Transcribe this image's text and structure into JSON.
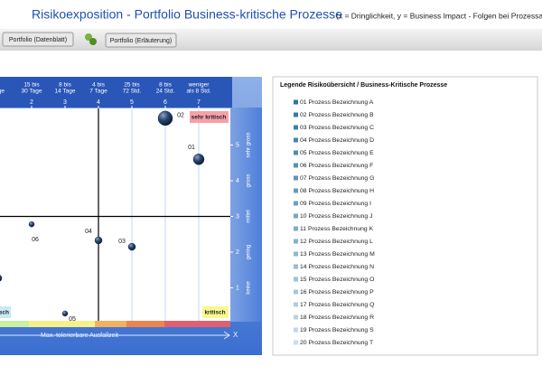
{
  "header": {
    "title": "Risikoexposition - Portfolio Business-kritische Prozesse",
    "subtitle": "(x = Dringlichkeit,   y = Business Impact  -  Folgen bei Prozessausfall"
  },
  "toolbar": {
    "buttons": [
      "Portfolio (Datenblatt)",
      "Portfolio (Erläuterung)"
    ]
  },
  "chart_data": {
    "type": "bubble",
    "x": [
      7,
      6,
      5,
      4,
      3,
      2,
      1
    ],
    "y": [
      4.6,
      5.75,
      2.15,
      2.33,
      0.28,
      2.78,
      1.27
    ],
    "sizes": [
      6,
      8,
      4,
      4,
      3,
      3,
      4
    ],
    "point_labels": [
      "01",
      "02",
      "03",
      "04",
      "05",
      "06",
      null
    ],
    "color": "#1f3558",
    "xlim": [
      1,
      8
    ],
    "ylim": [
      0,
      6
    ],
    "xticks": [
      2,
      3,
      4,
      5,
      6,
      7
    ],
    "x_tick_periods": [
      [
        "15 bis",
        "30 Tage"
      ],
      [
        "8 bis",
        "14 Tage"
      ],
      [
        "4 bis",
        "7 Tage"
      ],
      [
        "25 bis",
        "72 Std."
      ],
      [
        "8 bis",
        "24 Std."
      ],
      [
        "weniger",
        "als 8 Std."
      ]
    ],
    "first_column_period": "Tage",
    "yticks": [
      1,
      2,
      3,
      4,
      5
    ],
    "y_tick_words": [
      "keine",
      "gering",
      "mittel",
      "gross",
      "sehr gross"
    ],
    "quadrant_x": 4,
    "quadrant_y": 3,
    "annotations": {
      "top_right": "sehr kritisch",
      "bottom_right": "kritisch",
      "bottom_left": "sch"
    },
    "xlabel": "Max. tolerierbare Ausfallzeit",
    "x_axis_letter": "X"
  },
  "legend": {
    "title": "Legende Risikoübersicht / Business-Kritische Prozesse",
    "items": [
      "01 Prozess Bezeichnung A",
      "02 Prozess Bezeichnung B",
      "03 Prozess Bezeichnung C",
      "04 Prozess Bezeichnung D",
      "05 Prozess Bezeichnung E",
      "06 Prozess Bezeichnung F",
      "07 Prozess Bezeichnung G",
      "08 Prozess Bezeichnung H",
      "09 Prozess Bezeichnung I",
      "10 Prozess Bezeichnung J",
      "11 Prozess Bezeichnung K",
      "12 Prozess Bezeichnung L",
      "13 Prozess Bezeichnung M",
      "14 Prozess Bezeichnung N",
      "15 Prozess Bezeichnung O",
      "16 Prozess Bezeichnung P",
      "17 Prozess Bezeichnung Q",
      "18 Prozess Bezeichnung R",
      "19 Prozess Bezeichnung S",
      "20 Prozess Bezeichnung T"
    ]
  }
}
